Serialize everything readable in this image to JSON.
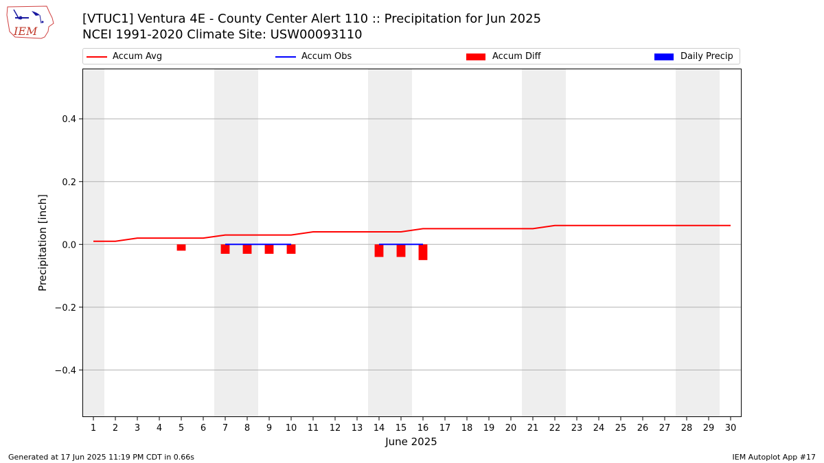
{
  "header": {
    "title_line1": "[VTUC1] Ventura 4E - County Center Alert 110 :: Precipitation for Jun 2025",
    "title_line2": "NCEI 1991-2020 Climate Site: USW00093110",
    "logo_text": "IEM"
  },
  "footer": {
    "left": "Generated at 17 Jun 2025 11:19 PM CDT in 0.66s",
    "right": "IEM Autoplot App #17"
  },
  "colors": {
    "accum_avg": "#ff0000",
    "accum_obs": "#0000ff",
    "accum_diff": "#ff0000",
    "daily_precip": "#0000ff",
    "weekend_shade": "#eeeeee",
    "grid": "#b0b0b0"
  },
  "chart_data": {
    "type": "line",
    "xlabel": "June 2025",
    "ylabel": "Precipitation [inch]",
    "xlim": [
      0.5,
      30.5
    ],
    "ylim": [
      -0.55,
      0.56
    ],
    "grid": true,
    "legend_placement": "top",
    "x": [
      1,
      2,
      3,
      4,
      5,
      6,
      7,
      8,
      9,
      10,
      11,
      12,
      13,
      14,
      15,
      16,
      17,
      18,
      19,
      20,
      21,
      22,
      23,
      24,
      25,
      26,
      27,
      28,
      29,
      30
    ],
    "x_tick_labels": [
      "1",
      "2",
      "3",
      "4",
      "5",
      "6",
      "7",
      "8",
      "9",
      "10",
      "11",
      "12",
      "13",
      "14",
      "15",
      "16",
      "17",
      "18",
      "19",
      "20",
      "21",
      "22",
      "23",
      "24",
      "25",
      "26",
      "27",
      "28",
      "29",
      "30"
    ],
    "y_ticks": [
      -0.4,
      -0.2,
      0.0,
      0.2,
      0.4
    ],
    "y_tick_labels": [
      "−0.4",
      "−0.2",
      "0.0",
      "0.2",
      "0.4"
    ],
    "weekend_days": [
      1,
      7,
      8,
      14,
      15,
      21,
      22,
      28,
      29
    ],
    "legend": [
      "Accum Avg",
      "Accum Obs",
      "Accum Diff",
      "Daily Precip"
    ],
    "series": [
      {
        "name": "Accum Avg",
        "kind": "line",
        "x": [
          1,
          2,
          3,
          4,
          5,
          6,
          7,
          8,
          9,
          10,
          11,
          12,
          13,
          14,
          15,
          16,
          17,
          18,
          19,
          20,
          21,
          22,
          23,
          24,
          25,
          26,
          27,
          28,
          29,
          30
        ],
        "values": [
          0.01,
          0.01,
          0.02,
          0.02,
          0.02,
          0.02,
          0.03,
          0.03,
          0.03,
          0.03,
          0.04,
          0.04,
          0.04,
          0.04,
          0.04,
          0.05,
          0.05,
          0.05,
          0.05,
          0.05,
          0.05,
          0.06,
          0.06,
          0.06,
          0.06,
          0.06,
          0.06,
          0.06,
          0.06,
          0.06
        ]
      },
      {
        "name": "Accum Obs",
        "kind": "line",
        "x": [
          7,
          8,
          9,
          10
        ],
        "values": [
          0,
          0,
          0,
          0
        ]
      },
      {
        "name": "Accum Obs",
        "kind": "line",
        "x": [
          14,
          15,
          16
        ],
        "values": [
          0,
          0,
          0
        ]
      },
      {
        "name": "Accum Diff",
        "kind": "bar",
        "x": [
          5,
          7,
          8,
          9,
          10,
          14,
          15,
          16
        ],
        "values": [
          -0.02,
          -0.03,
          -0.03,
          -0.03,
          -0.03,
          -0.04,
          -0.04,
          -0.05
        ]
      },
      {
        "name": "Daily Precip",
        "kind": "bar",
        "x": [],
        "values": []
      }
    ]
  }
}
